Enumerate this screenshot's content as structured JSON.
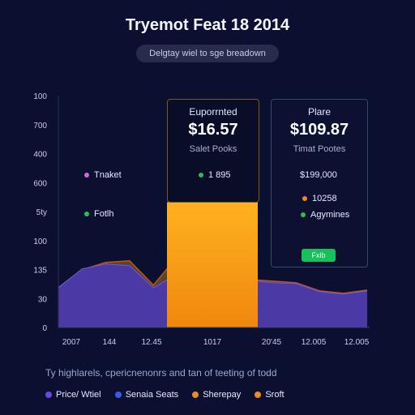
{
  "header": {
    "title": "Tryemot Feat 18 2014",
    "subtitle_pill": "Delgtay wiel to sge breadown"
  },
  "colors": {
    "background": "#0b1030",
    "area_purple": "#4b3aa6",
    "area_brown": "#5c4426",
    "bar_orange": "#f7a11b",
    "green_badge": "#17c05a"
  },
  "chart_data": {
    "type": "area",
    "yticks": [
      "100",
      "700",
      "400",
      "600",
      "5ty",
      "100",
      "135",
      "30",
      "0"
    ],
    "xticks": [
      "2007",
      "144",
      "12.45",
      "1017",
      "20'45",
      "12.005",
      "12.005"
    ],
    "x": [
      0,
      1,
      2,
      3,
      4,
      5,
      6,
      7,
      8,
      9,
      10,
      11,
      12,
      13
    ],
    "series": [
      {
        "values": [
          49,
          72,
          78,
          76,
          49,
          65,
          77,
          67,
          58,
          55,
          54,
          44,
          41,
          45
        ]
      },
      {
        "values": [
          49,
          71,
          80,
          82,
          52,
          87,
          79,
          66,
          59,
          57,
          55,
          45,
          42,
          46
        ]
      }
    ],
    "highlight_bar": {
      "value": 154
    },
    "ylim": [
      0,
      285
    ],
    "grid": false
  },
  "cards": [
    {
      "title": "Euporrnted",
      "value": "$16.57",
      "sub": "Salet Pooks",
      "rows": [
        {
          "color": "#2dbf56",
          "text": "1 895"
        }
      ]
    },
    {
      "title": "Plare",
      "value": "$109.87",
      "sub": "Timat Pootes",
      "rows": [
        {
          "color": "",
          "text": "$199,000"
        },
        {
          "color": "#f08a1c",
          "text": "10258"
        },
        {
          "color": "#2dbf56",
          "text": "Agymines"
        }
      ],
      "badge": "Fxlb"
    }
  ],
  "left_labels": [
    {
      "color": "#d06ad8",
      "text": "Tnaket"
    },
    {
      "color": "#2dbf56",
      "text": "Fotlh"
    }
  ],
  "footnote": "Ty highlarels, cpericnenonrs and tan of teeting of todd",
  "legend": [
    {
      "color": "#6b46e0",
      "label": "Price/ Wtiel"
    },
    {
      "color": "#3c58e8",
      "label": "Senaia Seats"
    },
    {
      "color": "#f08a1c",
      "label": "Sherepay"
    },
    {
      "color": "#f08a1c",
      "label": "Sroft"
    }
  ]
}
